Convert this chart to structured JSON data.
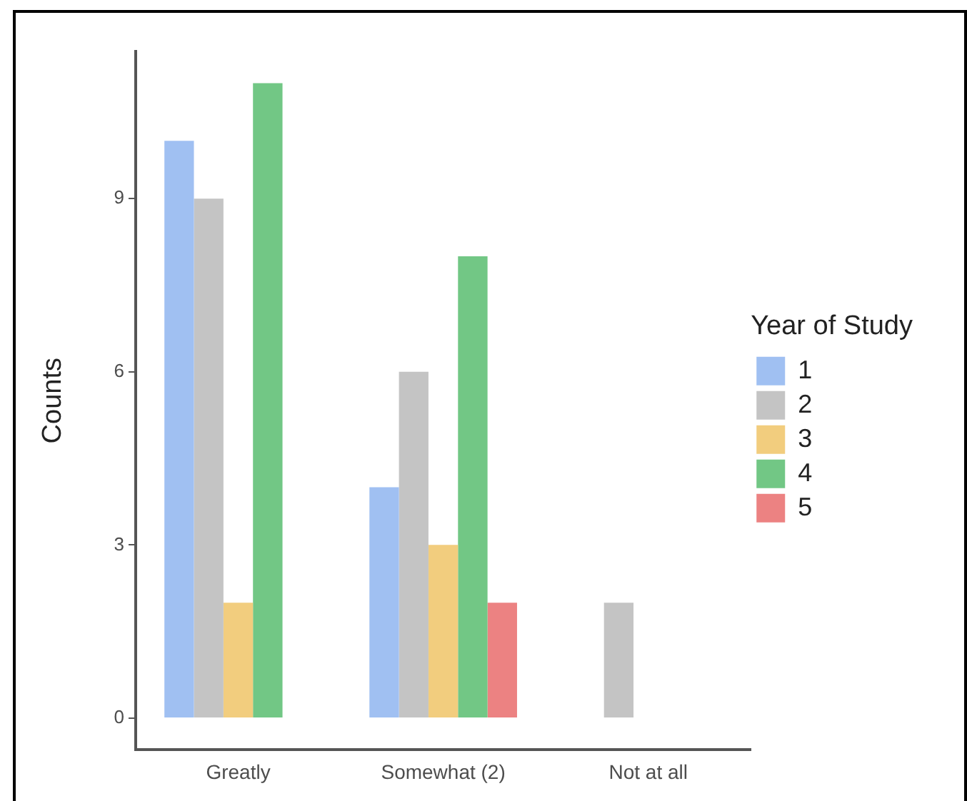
{
  "chart_data": {
    "type": "bar",
    "ylabel": "Counts",
    "legend_title": "Year of Study",
    "legend": "right",
    "grid": false,
    "categories": [
      "Greatly",
      "Somewhat (2)",
      "Not at all"
    ],
    "ylim": [
      -0.55,
      11.55
    ],
    "yticks": [
      0,
      3,
      6,
      9
    ],
    "series": [
      {
        "name": "1",
        "color": "#a0c0f2",
        "values": [
          10,
          4,
          null
        ]
      },
      {
        "name": "2",
        "color": "#c4c4c4",
        "values": [
          9,
          6,
          2
        ]
      },
      {
        "name": "3",
        "color": "#f2cd7e",
        "values": [
          2,
          3,
          null
        ]
      },
      {
        "name": "4",
        "color": "#72c785",
        "values": [
          11,
          8,
          null
        ]
      },
      {
        "name": "5",
        "color": "#ec8282",
        "values": [
          null,
          2,
          null
        ]
      }
    ]
  }
}
